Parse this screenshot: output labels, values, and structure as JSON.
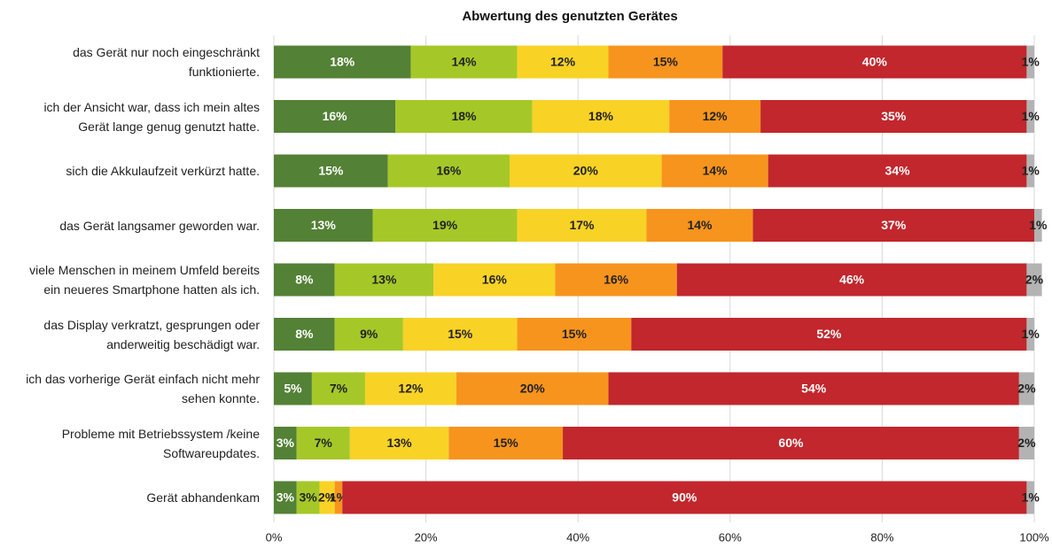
{
  "chart_data": {
    "type": "stacked_barh",
    "title": "Abwertung des genutzten Gerätes",
    "categories": [
      "das Gerät nur noch eingeschränkt\nfunktionierte.",
      "ich der Ansicht war, dass ich mein altes\nGerät lange genug genutzt hatte.",
      "sich die Akkulaufzeit verkürzt hatte.",
      "das Gerät langsamer geworden war.",
      "viele Menschen in meinem Umfeld bereits\nein neueres Smartphone hatten als ich.",
      "das Display verkratzt, gesprungen oder\nanderweitig beschädigt war.",
      "ich das vorherige Gerät einfach nicht mehr\nsehen konnte.",
      "Probleme mit Betriebssystem /keine\nSoftwareupdates.",
      "Gerät abhandenkam"
    ],
    "series": [
      {
        "color": "#538135",
        "values": [
          18,
          16,
          15,
          13,
          8,
          8,
          5,
          3,
          3
        ],
        "value_labels": [
          "18%",
          "16%",
          "15%",
          "13%",
          "8%",
          "8%",
          "5%",
          "3%",
          "3%"
        ]
      },
      {
        "color": "#a5c828",
        "values": [
          14,
          18,
          16,
          19,
          13,
          9,
          7,
          7,
          3
        ],
        "value_labels": [
          "14%",
          "18%",
          "16%",
          "19%",
          "13%",
          "9%",
          "7%",
          "7%",
          "3%"
        ]
      },
      {
        "color": "#f9d226",
        "values": [
          12,
          18,
          20,
          17,
          16,
          15,
          12,
          13,
          2
        ],
        "value_labels": [
          "12%",
          "18%",
          "20%",
          "17%",
          "16%",
          "15%",
          "12%",
          "13%",
          "2%"
        ]
      },
      {
        "color": "#f7941d",
        "values": [
          15,
          12,
          14,
          14,
          16,
          15,
          20,
          15,
          1
        ],
        "value_labels": [
          "15%",
          "12%",
          "14%",
          "14%",
          "16%",
          "15%",
          "20%",
          "15%",
          "1%"
        ]
      },
      {
        "color": "#c1272d",
        "values": [
          40,
          35,
          34,
          37,
          46,
          52,
          54,
          60,
          90
        ],
        "value_labels": [
          "40%",
          "35%",
          "34%",
          "37%",
          "46%",
          "52%",
          "54%",
          "60%",
          "90%"
        ]
      },
      {
        "color": "#b3b3b3",
        "values": [
          1,
          1,
          1,
          1,
          2,
          1,
          2,
          2,
          1
        ],
        "value_labels": [
          "1%",
          "1%",
          "1%",
          "1%",
          "2%",
          "1%",
          "2%",
          "2%",
          "1%"
        ]
      }
    ],
    "xlim": [
      0,
      100
    ],
    "xticks": [
      {
        "value": 0,
        "label": "0%"
      },
      {
        "value": 20,
        "label": "20%"
      },
      {
        "value": 40,
        "label": "40%"
      },
      {
        "value": 60,
        "label": "60%"
      },
      {
        "value": 80,
        "label": "80%"
      },
      {
        "value": 100,
        "label": "100%"
      }
    ],
    "grid": true
  }
}
